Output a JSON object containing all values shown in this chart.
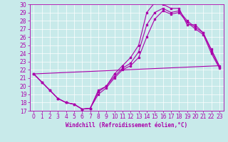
{
  "xlabel": "Windchill (Refroidissement éolien,°C)",
  "bg_color": "#c8eaea",
  "line_color": "#aa00aa",
  "xlim": [
    -0.5,
    23.5
  ],
  "ylim": [
    17,
    30
  ],
  "xticks": [
    0,
    1,
    2,
    3,
    4,
    5,
    6,
    7,
    8,
    9,
    10,
    11,
    12,
    13,
    14,
    15,
    16,
    17,
    18,
    19,
    20,
    21,
    22,
    23
  ],
  "yticks": [
    17,
    18,
    19,
    20,
    21,
    22,
    23,
    24,
    25,
    26,
    27,
    28,
    29,
    30
  ],
  "curve1_x": [
    0,
    1,
    2,
    3,
    4,
    5,
    6,
    7,
    8,
    9,
    10,
    11,
    12,
    13,
    14,
    15,
    16,
    17,
    18,
    19,
    20,
    21,
    22,
    23
  ],
  "curve1_y": [
    21.5,
    20.5,
    19.5,
    18.5,
    18.0,
    17.8,
    17.2,
    17.3,
    19.5,
    20.0,
    21.5,
    22.5,
    23.5,
    25.0,
    29.0,
    30.2,
    30.0,
    29.5,
    29.5,
    27.5,
    27.5,
    26.5,
    24.5,
    22.5
  ],
  "curve2_x": [
    0,
    1,
    2,
    3,
    4,
    5,
    6,
    7,
    8,
    9,
    10,
    11,
    12,
    13,
    14,
    15,
    16,
    17,
    18,
    19,
    20,
    21,
    22,
    23
  ],
  "curve2_y": [
    21.5,
    20.5,
    19.5,
    18.5,
    18.0,
    17.8,
    17.2,
    17.3,
    19.3,
    20.0,
    21.2,
    22.2,
    22.8,
    24.2,
    27.5,
    29.0,
    29.5,
    29.0,
    29.2,
    28.0,
    27.2,
    26.5,
    24.3,
    22.3
  ],
  "curve3_x": [
    0,
    1,
    2,
    3,
    4,
    5,
    6,
    7,
    8,
    9,
    10,
    11,
    12,
    13,
    14,
    15,
    16,
    17,
    18,
    19,
    20,
    21,
    22,
    23
  ],
  "curve3_y": [
    21.5,
    20.5,
    19.5,
    18.5,
    18.0,
    17.8,
    17.2,
    17.3,
    19.0,
    19.8,
    21.0,
    22.0,
    22.5,
    23.5,
    26.0,
    28.2,
    29.2,
    28.8,
    29.0,
    27.8,
    27.0,
    26.3,
    24.0,
    22.2
  ],
  "curve4_x": [
    0,
    23
  ],
  "curve4_y": [
    21.5,
    22.5
  ],
  "xlabel_fontsize": 5.5,
  "tick_labelsize": 5.5
}
